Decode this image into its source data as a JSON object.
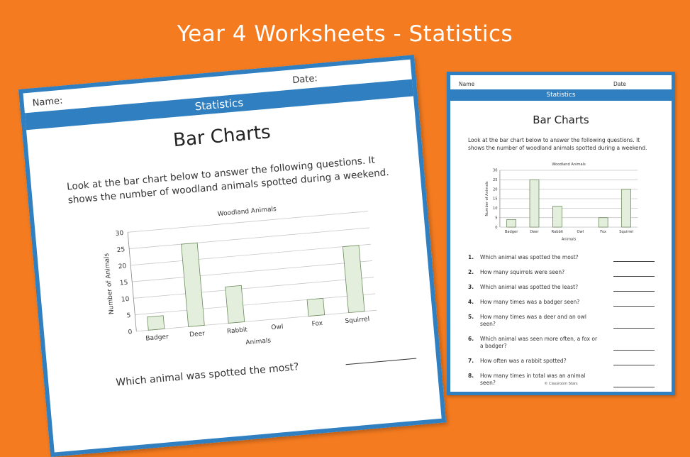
{
  "page_title": "Year 4 Worksheets - Statistics",
  "worksheet": {
    "name_label": "Name:",
    "date_label": "Date:",
    "strip_title": "Statistics",
    "heading": "Bar Charts",
    "intro": "Look at the bar chart below to answer the following questions. It shows the number of woodland animals spotted during a weekend.",
    "first_question_partial": "Which animal was spotted the most?"
  },
  "worksheet_small": {
    "name_label": "Name",
    "date_label": "Date",
    "strip_title": "Statistics",
    "heading": "Bar Charts",
    "intro": "Look at the bar chart below to answer the following questions. It shows the number of woodland animals spotted during a weekend.",
    "questions": [
      {
        "num": "1.",
        "text": "Which animal was spotted the most?"
      },
      {
        "num": "2.",
        "text": "How many squirrels were seen?"
      },
      {
        "num": "3.",
        "text": "Which animal was spotted the least?"
      },
      {
        "num": "4.",
        "text": "How many times was a badger seen?"
      },
      {
        "num": "5.",
        "text": "How many times was a deer and an owl seen?"
      },
      {
        "num": "6.",
        "text": "Which animal was seen more often, a fox or a badger?"
      },
      {
        "num": "7.",
        "text": "How often was a rabbit spotted?"
      },
      {
        "num": "8.",
        "text": "How many times in total was an animal seen?"
      }
    ],
    "footer": "© Classroom Stars"
  },
  "chart_data": [
    {
      "type": "bar",
      "title": "Woodland Animals",
      "xlabel": "Animals",
      "ylabel": "Number of Animals",
      "categories": [
        "Badger",
        "Deer",
        "Rabbit",
        "Owl",
        "Fox",
        "Squirrel"
      ],
      "values": [
        4,
        25,
        11,
        0,
        5,
        20
      ],
      "ylim": [
        0,
        30
      ],
      "yticks": [
        0,
        5,
        10,
        15,
        20,
        25,
        30
      ],
      "grid": true,
      "bar_color": "#e4eedc",
      "bar_edge": "#6a8a5a"
    }
  ],
  "colors": {
    "background": "#f47b20",
    "accent": "#2f7fc1"
  }
}
